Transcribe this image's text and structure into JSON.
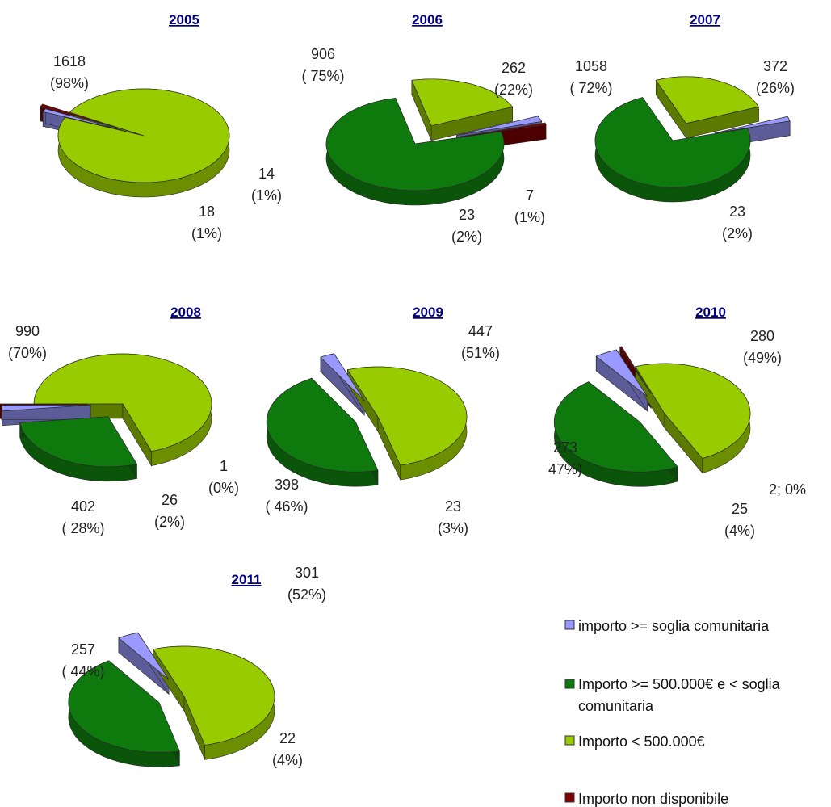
{
  "colors": {
    "importo_soglia": "#9999ff",
    "importo_500k_soglia": "#0e7a0e",
    "importo_lt_500k": "#99cc00",
    "non_disponibile": "#800000"
  },
  "legend": [
    {
      "key": "importo_soglia",
      "label": "importo >= soglia comunitaria"
    },
    {
      "key": "importo_500k_soglia",
      "label_lines": [
        "Importo >= 500.000€ e < soglia",
        "comunitaria"
      ]
    },
    {
      "key": "importo_lt_500k",
      "label": "Importo < 500.000€"
    },
    {
      "key": "non_disponibile",
      "label": "Importo non disponibile"
    }
  ],
  "chart_data": [
    {
      "type": "pie",
      "title": "2005",
      "slices": [
        {
          "series": "importo_lt_500k",
          "value": 1618,
          "label_lines": [
            "1618",
            "(98%)"
          ]
        },
        {
          "series": "importo_500k_soglia",
          "value": 0,
          "label_lines": []
        },
        {
          "series": "importo_soglia",
          "value": 18,
          "label_lines": [
            "18",
            "(1%)"
          ]
        },
        {
          "series": "non_disponibile",
          "value": 14,
          "label_lines": [
            "14",
            "(1%)"
          ]
        }
      ]
    },
    {
      "type": "pie",
      "title": "2006",
      "slices": [
        {
          "series": "importo_500k_soglia",
          "value": 906,
          "label_lines": [
            "906",
            "( 75%)"
          ]
        },
        {
          "series": "importo_lt_500k",
          "value": 262,
          "label_lines": [
            "262",
            "(22%)"
          ]
        },
        {
          "series": "importo_soglia",
          "value": 23,
          "label_lines": [
            "23",
            "(2%)"
          ]
        },
        {
          "series": "non_disponibile",
          "value": 7,
          "label_lines": [
            "7",
            "(1%)"
          ]
        }
      ]
    },
    {
      "type": "pie",
      "title": "2007",
      "slices": [
        {
          "series": "importo_500k_soglia",
          "value": 1058,
          "label_lines": [
            "1058",
            "( 72%)"
          ]
        },
        {
          "series": "importo_lt_500k",
          "value": 372,
          "label_lines": [
            "372",
            "(26%)"
          ]
        },
        {
          "series": "importo_soglia",
          "value": 23,
          "label_lines": [
            "23",
            "(2%)"
          ]
        },
        {
          "series": "non_disponibile",
          "value": 0,
          "label_lines": []
        }
      ]
    },
    {
      "type": "pie",
      "title": "2008",
      "slices": [
        {
          "series": "importo_lt_500k",
          "value": 990,
          "label_lines": [
            "990",
            "(70%)"
          ]
        },
        {
          "series": "importo_500k_soglia",
          "value": 402,
          "label_lines": [
            "402",
            "( 28%)"
          ]
        },
        {
          "series": "importo_soglia",
          "value": 26,
          "label_lines": [
            "26",
            "(2%)"
          ]
        },
        {
          "series": "non_disponibile",
          "value": 1,
          "label_lines": [
            "1",
            "(0%)"
          ]
        }
      ]
    },
    {
      "type": "pie",
      "title": "2009",
      "slices": [
        {
          "series": "importo_lt_500k",
          "value": 447,
          "label_lines": [
            "447",
            "(51%)"
          ]
        },
        {
          "series": "importo_500k_soglia",
          "value": 398,
          "label_lines": [
            "398",
            "( 46%)"
          ]
        },
        {
          "series": "importo_soglia",
          "value": 23,
          "label_lines": [
            "23",
            "(3%)"
          ]
        },
        {
          "series": "non_disponibile",
          "value": 0,
          "label_lines": []
        }
      ]
    },
    {
      "type": "pie",
      "title": "2010",
      "slices": [
        {
          "series": "importo_lt_500k",
          "value": 280,
          "label_lines": [
            "280",
            "(49%)"
          ]
        },
        {
          "series": "importo_500k_soglia",
          "value": 273,
          "label_lines": [
            "273",
            "47%)"
          ]
        },
        {
          "series": "importo_soglia",
          "value": 25,
          "label_lines": [
            "25",
            "(4%)"
          ]
        },
        {
          "series": "non_disponibile",
          "value": 2,
          "label_lines": [
            "2; 0%"
          ]
        }
      ]
    },
    {
      "type": "pie",
      "title": "2011",
      "slices": [
        {
          "series": "importo_lt_500k",
          "value": 301,
          "label_lines": [
            "301",
            "(52%)"
          ]
        },
        {
          "series": "importo_500k_soglia",
          "value": 257,
          "label_lines": [
            "257",
            "( 44%)"
          ]
        },
        {
          "series": "importo_soglia",
          "value": 22,
          "label_lines": [
            "22",
            "(4%)"
          ]
        },
        {
          "series": "non_disponibile",
          "value": 0,
          "label_lines": []
        }
      ]
    }
  ]
}
